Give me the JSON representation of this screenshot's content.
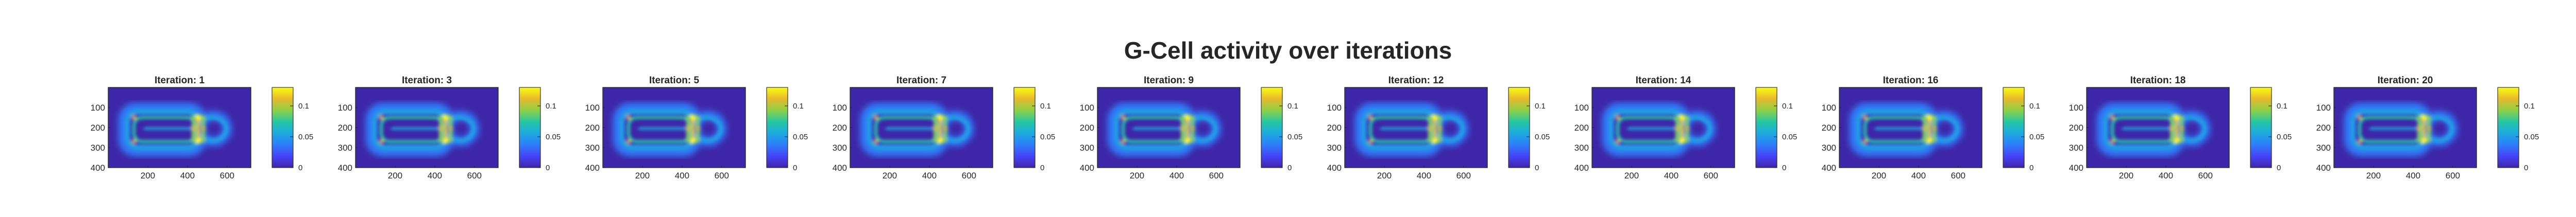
{
  "figure_title": "G-Cell activity over iterations",
  "colormap": [
    "#3e26a8",
    "#4743f8",
    "#2d7ef9",
    "#1caadf",
    "#25c7a4",
    "#8ed047",
    "#e7ba2a",
    "#f9fb15"
  ],
  "chart_data": [
    {
      "type": "heatmap",
      "title": "Iteration: 1",
      "iteration": 1,
      "xticks": [
        200,
        400,
        600
      ],
      "yticks": [
        100,
        200,
        300,
        400
      ],
      "xlim": [
        0,
        720
      ],
      "ylim": [
        0,
        400
      ],
      "clim": [
        0,
        0.13
      ],
      "cbar_ticks": [
        0,
        0.05,
        0.1
      ],
      "cbar_tick_labels": [
        "0",
        "0.05",
        "0.1"
      ]
    },
    {
      "type": "heatmap",
      "title": "Iteration: 3",
      "iteration": 3,
      "xticks": [
        200,
        400,
        600
      ],
      "yticks": [
        100,
        200,
        300,
        400
      ],
      "xlim": [
        0,
        720
      ],
      "ylim": [
        0,
        400
      ],
      "clim": [
        0,
        0.13
      ],
      "cbar_ticks": [
        0,
        0.05,
        0.1
      ],
      "cbar_tick_labels": [
        "0",
        "0.05",
        "0.1"
      ]
    },
    {
      "type": "heatmap",
      "title": "Iteration: 5",
      "iteration": 5,
      "xticks": [
        200,
        400,
        600
      ],
      "yticks": [
        100,
        200,
        300,
        400
      ],
      "xlim": [
        0,
        720
      ],
      "ylim": [
        0,
        400
      ],
      "clim": [
        0,
        0.13
      ],
      "cbar_ticks": [
        0,
        0.05,
        0.1
      ],
      "cbar_tick_labels": [
        "0",
        "0.05",
        "0.1"
      ]
    },
    {
      "type": "heatmap",
      "title": "Iteration: 7",
      "iteration": 7,
      "xticks": [
        200,
        400,
        600
      ],
      "yticks": [
        100,
        200,
        300,
        400
      ],
      "xlim": [
        0,
        720
      ],
      "ylim": [
        0,
        400
      ],
      "clim": [
        0,
        0.13
      ],
      "cbar_ticks": [
        0,
        0.05,
        0.1
      ],
      "cbar_tick_labels": [
        "0",
        "0.05",
        "0.1"
      ]
    },
    {
      "type": "heatmap",
      "title": "Iteration: 9",
      "iteration": 9,
      "xticks": [
        200,
        400,
        600
      ],
      "yticks": [
        100,
        200,
        300,
        400
      ],
      "xlim": [
        0,
        720
      ],
      "ylim": [
        0,
        400
      ],
      "clim": [
        0,
        0.13
      ],
      "cbar_ticks": [
        0,
        0.05,
        0.1
      ],
      "cbar_tick_labels": [
        "0",
        "0.05",
        "0.1"
      ]
    },
    {
      "type": "heatmap",
      "title": "Iteration: 12",
      "iteration": 12,
      "xticks": [
        200,
        400,
        600
      ],
      "yticks": [
        100,
        200,
        300,
        400
      ],
      "xlim": [
        0,
        720
      ],
      "ylim": [
        0,
        400
      ],
      "clim": [
        0,
        0.13
      ],
      "cbar_ticks": [
        0,
        0.05,
        0.1
      ],
      "cbar_tick_labels": [
        "0",
        "0.05",
        "0.1"
      ]
    },
    {
      "type": "heatmap",
      "title": "Iteration: 14",
      "iteration": 14,
      "xticks": [
        200,
        400,
        600
      ],
      "yticks": [
        100,
        200,
        300,
        400
      ],
      "xlim": [
        0,
        720
      ],
      "ylim": [
        0,
        400
      ],
      "clim": [
        0,
        0.13
      ],
      "cbar_ticks": [
        0,
        0.05,
        0.1
      ],
      "cbar_tick_labels": [
        "0",
        "0.05",
        "0.1"
      ]
    },
    {
      "type": "heatmap",
      "title": "Iteration: 16",
      "iteration": 16,
      "xticks": [
        200,
        400,
        600
      ],
      "yticks": [
        100,
        200,
        300,
        400
      ],
      "xlim": [
        0,
        720
      ],
      "ylim": [
        0,
        400
      ],
      "clim": [
        0,
        0.13
      ],
      "cbar_ticks": [
        0,
        0.05,
        0.1
      ],
      "cbar_tick_labels": [
        "0",
        "0.05",
        "0.1"
      ]
    },
    {
      "type": "heatmap",
      "title": "Iteration: 18",
      "iteration": 18,
      "xticks": [
        200,
        400,
        600
      ],
      "yticks": [
        100,
        200,
        300,
        400
      ],
      "xlim": [
        0,
        720
      ],
      "ylim": [
        0,
        400
      ],
      "clim": [
        0,
        0.13
      ],
      "cbar_ticks": [
        0,
        0.05,
        0.1
      ],
      "cbar_tick_labels": [
        "0",
        "0.05",
        "0.1"
      ]
    },
    {
      "type": "heatmap",
      "title": "Iteration: 20",
      "iteration": 20,
      "xticks": [
        200,
        400,
        600
      ],
      "yticks": [
        100,
        200,
        300,
        400
      ],
      "xlim": [
        0,
        720
      ],
      "ylim": [
        0,
        400
      ],
      "clim": [
        0,
        0.13
      ],
      "cbar_ticks": [
        0,
        0.05,
        0.1
      ],
      "cbar_tick_labels": [
        "0",
        "0.05",
        "0.1"
      ]
    }
  ]
}
